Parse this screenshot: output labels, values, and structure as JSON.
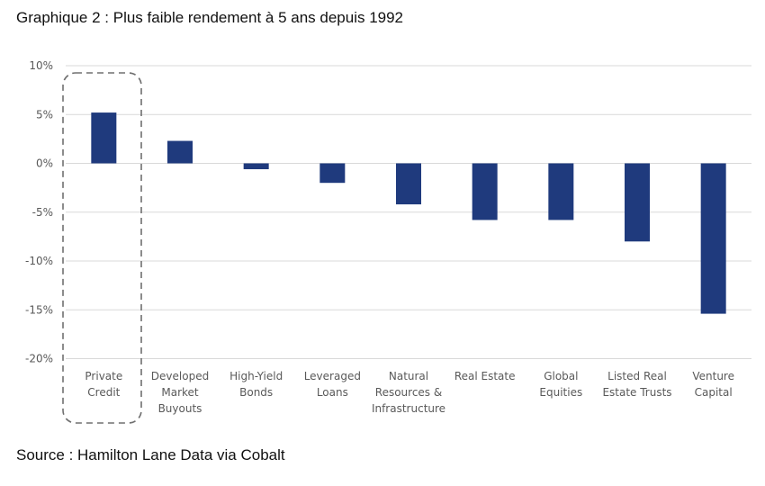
{
  "title": "Graphique 2 : Plus faible rendement à 5 ans depuis 1992",
  "source": "Source : Hamilton Lane Data via Cobalt",
  "colors": {
    "bar": "#1F3A7D",
    "grid": "#D9D9D9",
    "tick_text": "#595959",
    "highlight_box": "#707070"
  },
  "chart_data": {
    "type": "bar",
    "title": "Graphique 2 : Plus faible rendement à 5 ans depuis 1992",
    "xlabel": "",
    "ylabel": "",
    "ylim": [
      -20,
      10
    ],
    "yticks": [
      10,
      5,
      0,
      -5,
      -10,
      -15,
      -20
    ],
    "ytick_labels": [
      "10%",
      "5%",
      "0%",
      "-5%",
      "-10%",
      "-15%",
      "-20%"
    ],
    "grid": true,
    "legend": "none",
    "categories": [
      [
        "Private",
        "Credit"
      ],
      [
        "Developed",
        "Market",
        "Buyouts"
      ],
      [
        "High-Yield",
        "Bonds"
      ],
      [
        "Leveraged",
        "Loans"
      ],
      [
        "Natural",
        "Resources &",
        "Infrastructure"
      ],
      [
        "Real Estate"
      ],
      [
        "Global",
        "Equities"
      ],
      [
        "Listed Real",
        "Estate Trusts"
      ],
      [
        "Venture",
        "Capital"
      ]
    ],
    "values": [
      5.2,
      2.3,
      -0.6,
      -2.0,
      -4.2,
      -5.8,
      -5.8,
      -8.0,
      -15.4
    ],
    "unit": "%",
    "annotation": "Private Credit highlighted with dashed rounded box"
  }
}
